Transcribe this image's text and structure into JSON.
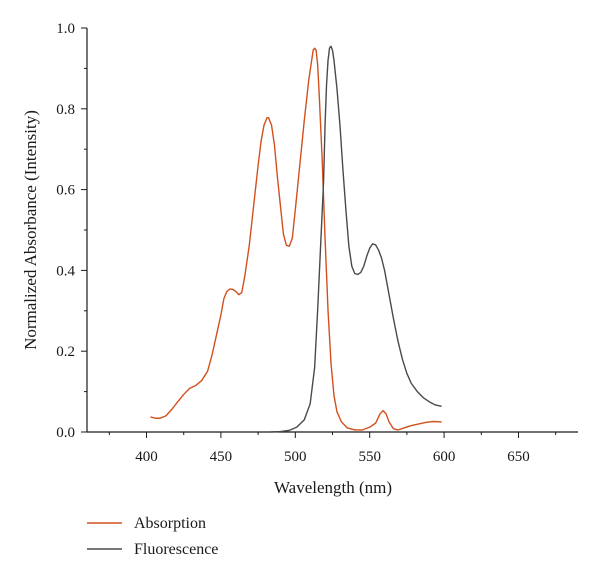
{
  "chart_data": {
    "type": "line",
    "title": "",
    "xlabel": "Wavelength (nm)",
    "ylabel": "Normalized Absorbance (Intensity)",
    "xlim": [
      360,
      690
    ],
    "ylim": [
      0,
      1.0
    ],
    "x_ticks": [
      "400",
      "450",
      "500",
      "550",
      "600",
      "650"
    ],
    "y_ticks": [
      "0.0",
      "0.2",
      "0.4",
      "0.6",
      "0.8",
      "1.0"
    ],
    "x_tick_values": [
      400,
      450,
      500,
      550,
      600,
      650
    ],
    "y_tick_values": [
      0.0,
      0.2,
      0.4,
      0.6,
      0.8,
      1.0
    ],
    "grid": false,
    "legend_position": "bottom-left",
    "series": [
      {
        "name": "Absorption",
        "color": "#d2501e",
        "points": [
          [
            403,
            0.037
          ],
          [
            406,
            0.034
          ],
          [
            409,
            0.034
          ],
          [
            413,
            0.04
          ],
          [
            417,
            0.056
          ],
          [
            421,
            0.075
          ],
          [
            425,
            0.093
          ],
          [
            429,
            0.108
          ],
          [
            433,
            0.115
          ],
          [
            437,
            0.127
          ],
          [
            441,
            0.15
          ],
          [
            444,
            0.19
          ],
          [
            447,
            0.24
          ],
          [
            450,
            0.29
          ],
          [
            452,
            0.33
          ],
          [
            454,
            0.348
          ],
          [
            456,
            0.354
          ],
          [
            458,
            0.353
          ],
          [
            460,
            0.348
          ],
          [
            462,
            0.34
          ],
          [
            464,
            0.345
          ],
          [
            466,
            0.385
          ],
          [
            469,
            0.46
          ],
          [
            472,
            0.56
          ],
          [
            475,
            0.66
          ],
          [
            477,
            0.72
          ],
          [
            479,
            0.76
          ],
          [
            481,
            0.778
          ],
          [
            482,
            0.778
          ],
          [
            484,
            0.76
          ],
          [
            486,
            0.71
          ],
          [
            488,
            0.63
          ],
          [
            490,
            0.56
          ],
          [
            492,
            0.49
          ],
          [
            494,
            0.462
          ],
          [
            496,
            0.46
          ],
          [
            498,
            0.48
          ],
          [
            500,
            0.55
          ],
          [
            503,
            0.66
          ],
          [
            506,
            0.77
          ],
          [
            509,
            0.87
          ],
          [
            511,
            0.92
          ],
          [
            512,
            0.945
          ],
          [
            513,
            0.95
          ],
          [
            514,
            0.945
          ],
          [
            515,
            0.91
          ],
          [
            516,
            0.84
          ],
          [
            518,
            0.68
          ],
          [
            520,
            0.48
          ],
          [
            522,
            0.3
          ],
          [
            524,
            0.17
          ],
          [
            526,
            0.09
          ],
          [
            528,
            0.05
          ],
          [
            531,
            0.025
          ],
          [
            535,
            0.01
          ],
          [
            540,
            0.005
          ],
          [
            545,
            0.005
          ],
          [
            550,
            0.012
          ],
          [
            554,
            0.022
          ],
          [
            557,
            0.045
          ],
          [
            559,
            0.053
          ],
          [
            561,
            0.045
          ],
          [
            563,
            0.025
          ],
          [
            566,
            0.008
          ],
          [
            569,
            0.005
          ],
          [
            573,
            0.01
          ],
          [
            578,
            0.016
          ],
          [
            583,
            0.02
          ],
          [
            588,
            0.024
          ],
          [
            593,
            0.026
          ],
          [
            598,
            0.025
          ]
        ]
      },
      {
        "name": "Fluorescence",
        "color": "#4a4a4a",
        "points": [
          [
            483,
            0.0
          ],
          [
            490,
            0.001
          ],
          [
            496,
            0.004
          ],
          [
            501,
            0.012
          ],
          [
            506,
            0.03
          ],
          [
            510,
            0.07
          ],
          [
            513,
            0.16
          ],
          [
            515,
            0.3
          ],
          [
            517,
            0.46
          ],
          [
            519,
            0.62
          ],
          [
            520,
            0.76
          ],
          [
            521,
            0.86
          ],
          [
            522,
            0.92
          ],
          [
            523,
            0.95
          ],
          [
            524,
            0.955
          ],
          [
            525,
            0.945
          ],
          [
            526,
            0.92
          ],
          [
            528,
            0.85
          ],
          [
            530,
            0.76
          ],
          [
            532,
            0.65
          ],
          [
            534,
            0.55
          ],
          [
            536,
            0.46
          ],
          [
            538,
            0.41
          ],
          [
            540,
            0.392
          ],
          [
            542,
            0.39
          ],
          [
            544,
            0.395
          ],
          [
            546,
            0.41
          ],
          [
            548,
            0.435
          ],
          [
            550,
            0.455
          ],
          [
            552,
            0.466
          ],
          [
            554,
            0.463
          ],
          [
            556,
            0.45
          ],
          [
            558,
            0.43
          ],
          [
            560,
            0.4
          ],
          [
            563,
            0.34
          ],
          [
            566,
            0.28
          ],
          [
            569,
            0.225
          ],
          [
            572,
            0.18
          ],
          [
            575,
            0.145
          ],
          [
            578,
            0.12
          ],
          [
            582,
            0.1
          ],
          [
            586,
            0.085
          ],
          [
            590,
            0.075
          ],
          [
            594,
            0.067
          ],
          [
            598,
            0.064
          ]
        ]
      }
    ]
  }
}
